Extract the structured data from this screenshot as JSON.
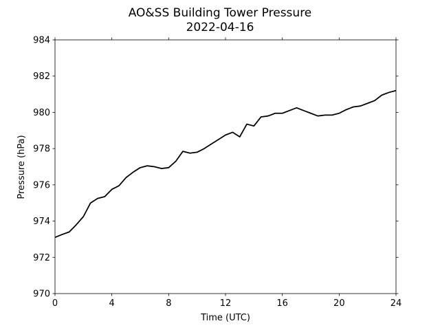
{
  "chart_data": {
    "type": "line",
    "title": "AO&SS Building Tower Pressure",
    "subtitle": "2022-04-16",
    "x_label": "Time (UTC)",
    "y_label": "Pressure (hPa)",
    "xlim": [
      0,
      24
    ],
    "xticks": [
      0,
      4,
      8,
      12,
      16,
      20,
      24
    ],
    "ylim": [
      970,
      984
    ],
    "yticks": [
      970,
      972,
      974,
      976,
      978,
      980,
      982,
      984
    ],
    "x": [
      0,
      0.5,
      1,
      1.5,
      2,
      2.5,
      3,
      3.5,
      4,
      4.5,
      5,
      5.5,
      6,
      6.5,
      7,
      7.5,
      8,
      8.5,
      9,
      9.5,
      10,
      10.5,
      11,
      11.5,
      12,
      12.5,
      13,
      13.5,
      14,
      14.5,
      15,
      15.5,
      16,
      16.5,
      17,
      17.5,
      18,
      18.5,
      19,
      19.5,
      20,
      20.5,
      21,
      21.5,
      22,
      22.5,
      23,
      23.5,
      24
    ],
    "series": [
      {
        "color": "#000000",
        "values": [
          973.1,
          973.26,
          973.4,
          973.8,
          974.25,
          975.0,
          975.25,
          975.35,
          975.75,
          975.95,
          976.4,
          976.7,
          976.95,
          977.05,
          977.0,
          976.9,
          976.95,
          977.3,
          977.85,
          977.75,
          977.8,
          978.0,
          978.25,
          978.5,
          978.75,
          978.9,
          978.65,
          979.35,
          979.25,
          979.75,
          979.8,
          979.95,
          979.95,
          980.1,
          980.25,
          980.1,
          979.95,
          979.8,
          979.85,
          979.85,
          979.95,
          980.15,
          980.3,
          980.35,
          980.5,
          980.65,
          980.95,
          981.1,
          981.2
        ]
      }
    ]
  }
}
